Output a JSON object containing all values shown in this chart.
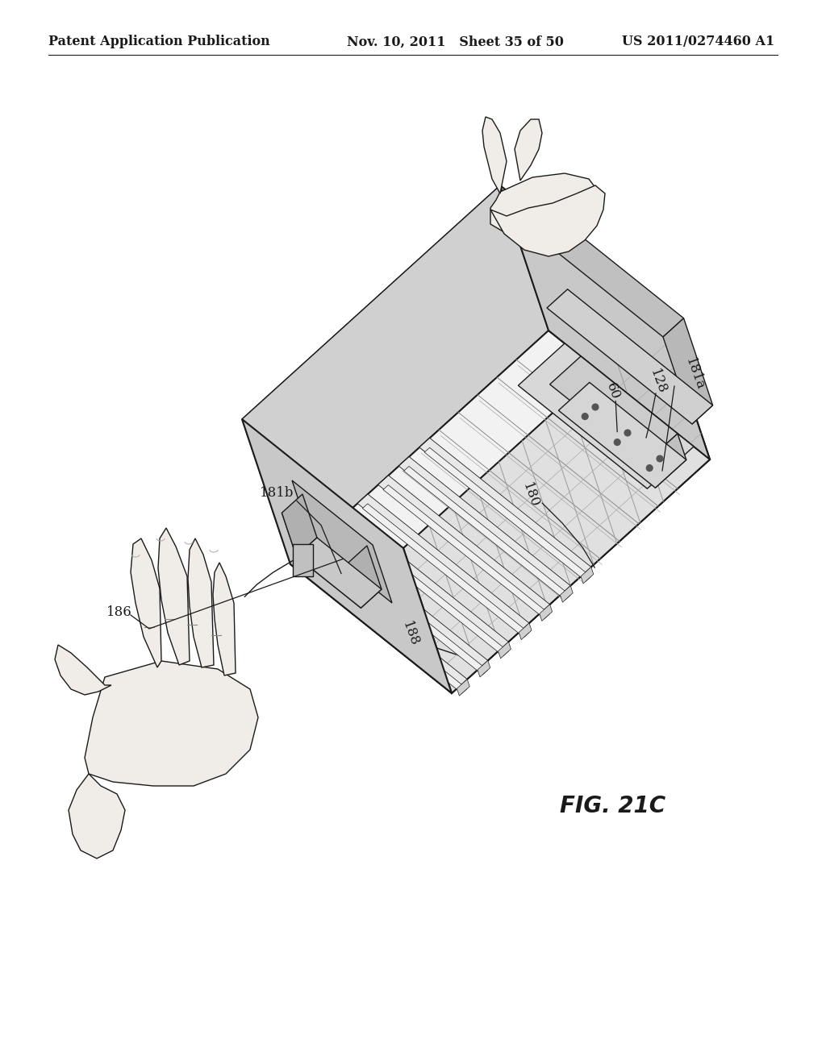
{
  "header_left": "Patent Application Publication",
  "header_mid": "Nov. 10, 2011  Sheet 35 of 50",
  "header_right": "US 2011/0274460 A1",
  "fig_label": "FIG. 21C",
  "background_color": "#ffffff",
  "line_color": "#1a1a1a",
  "fill_light": "#f2f2f2",
  "fill_mid": "#e0e0e0",
  "fill_dark": "#c8c8c8",
  "fill_hand": "#f0ede8",
  "header_fontsize": 11.5,
  "fig_label_fontsize": 20,
  "label_fontsize": 12
}
